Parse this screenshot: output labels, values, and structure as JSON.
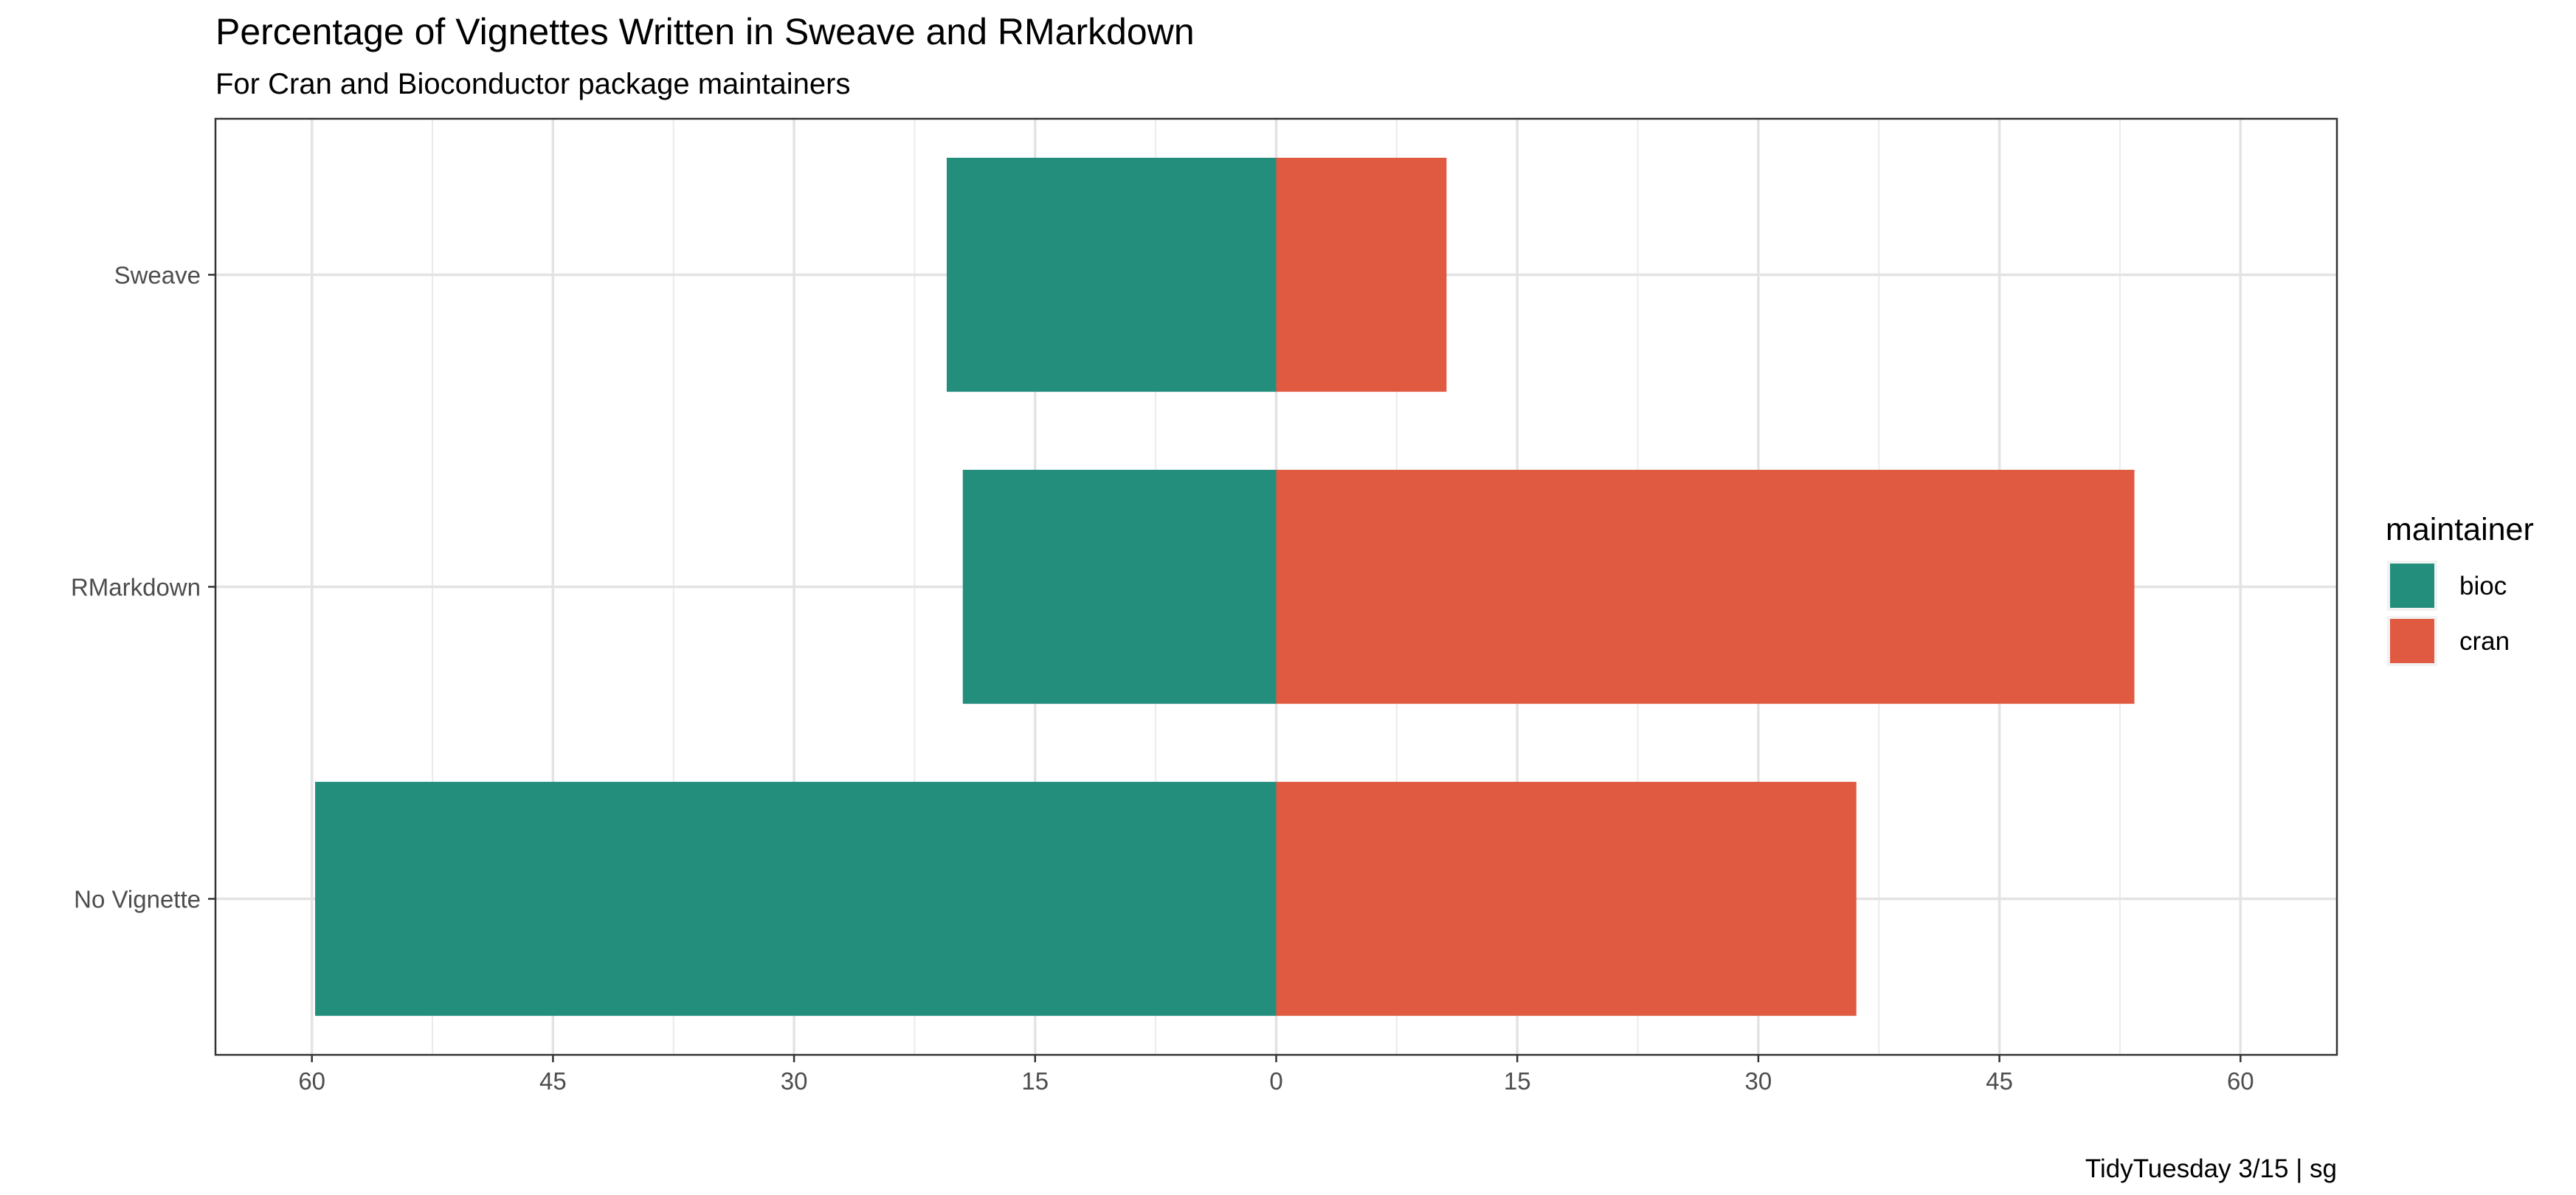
{
  "chart_data": {
    "type": "bar",
    "orientation": "horizontal-diverging",
    "title": "Percentage of Vignettes Written in Sweave and RMarkdown",
    "subtitle": "For Cran and Bioconductor package maintainers",
    "caption": "TidyTuesday 3/15 | sg",
    "categories": [
      "Sweave",
      "RMarkdown",
      "No Vignette"
    ],
    "series": [
      {
        "name": "bioc",
        "color": "#238E7C",
        "direction": "left",
        "values": [
          20.5,
          19.5,
          59.8
        ]
      },
      {
        "name": "cran",
        "color": "#E05A42",
        "direction": "right",
        "values": [
          10.6,
          53.4,
          36.1
        ]
      }
    ],
    "xlim": [
      -66,
      66
    ],
    "x_ticks": [
      -60,
      -45,
      -30,
      -15,
      0,
      15,
      30,
      45,
      60
    ],
    "x_tick_labels": [
      "60",
      "45",
      "30",
      "15",
      "0",
      "15",
      "30",
      "45",
      "60"
    ],
    "xlabel": "",
    "ylabel": "",
    "legend": {
      "title": "maintainer",
      "position": "right",
      "entries": [
        "bioc",
        "cran"
      ]
    },
    "grid": true
  }
}
